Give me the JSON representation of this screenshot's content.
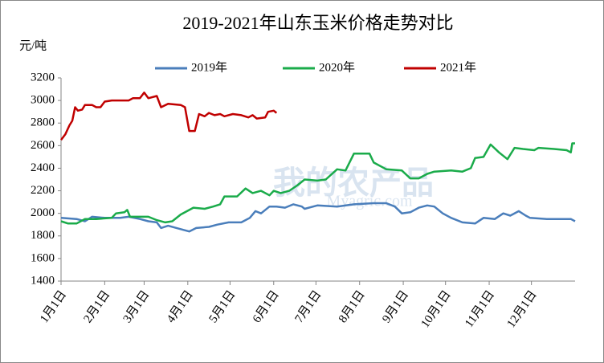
{
  "chart_data": {
    "type": "line",
    "title": "2019-2021年山东玉米价格走势对比",
    "y_label": "元/吨",
    "watermark": [
      "我的农产品",
      "Myagric.com"
    ],
    "xlim": [
      0,
      365
    ],
    "xticks": [
      {
        "value": 0,
        "label": "1月1日"
      },
      {
        "value": 31,
        "label": "2月1日"
      },
      {
        "value": 59,
        "label": "3月1日"
      },
      {
        "value": 90,
        "label": "4月1日"
      },
      {
        "value": 120,
        "label": "5月1日"
      },
      {
        "value": 151,
        "label": "6月1日"
      },
      {
        "value": 181,
        "label": "7月1日"
      },
      {
        "value": 212,
        "label": "8月1日"
      },
      {
        "value": 243,
        "label": "9月1日"
      },
      {
        "value": 273,
        "label": "10月1日"
      },
      {
        "value": 304,
        "label": "11月1日"
      },
      {
        "value": 334,
        "label": "12月1日"
      }
    ],
    "ylim": [
      1400,
      3200
    ],
    "yticks": [
      1400,
      1600,
      1800,
      2000,
      2200,
      2400,
      2600,
      2800,
      3000,
      3200
    ],
    "grid": false,
    "legend": "top",
    "series": [
      {
        "name": "2019年",
        "color": "#4a7ebb",
        "x": [
          0,
          11,
          17,
          22,
          31,
          42,
          48,
          56,
          62,
          68,
          71,
          76,
          82,
          91,
          96,
          105,
          111,
          119,
          128,
          134,
          138,
          142,
          148,
          153,
          159,
          165,
          171,
          173,
          182,
          196,
          208,
          222,
          231,
          237,
          242,
          248,
          254,
          260,
          265,
          271,
          277,
          285,
          294,
          300,
          308,
          314,
          319,
          325,
          330,
          333,
          345,
          356,
          362,
          365
        ],
        "values": [
          1960,
          1950,
          1930,
          1970,
          1960,
          1960,
          1970,
          1950,
          1930,
          1920,
          1870,
          1890,
          1870,
          1840,
          1870,
          1880,
          1900,
          1920,
          1920,
          1960,
          2020,
          2000,
          2060,
          2060,
          2050,
          2080,
          2060,
          2040,
          2070,
          2060,
          2080,
          2090,
          2090,
          2060,
          2000,
          2010,
          2050,
          2070,
          2060,
          2000,
          1960,
          1920,
          1910,
          1960,
          1950,
          2000,
          1980,
          2020,
          1980,
          1960,
          1950,
          1950,
          1950,
          1930
        ]
      },
      {
        "name": "2020年",
        "color": "#1aab4a",
        "x": [
          0,
          5,
          11,
          17,
          25,
          36,
          39,
          45,
          47,
          49,
          56,
          62,
          68,
          74,
          79,
          85,
          94,
          102,
          108,
          113,
          116,
          125,
          131,
          136,
          142,
          148,
          151,
          156,
          162,
          168,
          173,
          182,
          188,
          196,
          202,
          208,
          219,
          222,
          231,
          242,
          248,
          254,
          260,
          265,
          277,
          285,
          291,
          294,
          300,
          305,
          311,
          317,
          322,
          328,
          336,
          339,
          350,
          359,
          362,
          363,
          365
        ],
        "values": [
          1930,
          1910,
          1910,
          1950,
          1950,
          1960,
          2000,
          2010,
          2030,
          1970,
          1970,
          1970,
          1940,
          1920,
          1930,
          1990,
          2050,
          2040,
          2060,
          2080,
          2150,
          2150,
          2220,
          2180,
          2200,
          2160,
          2200,
          2180,
          2200,
          2250,
          2300,
          2290,
          2300,
          2390,
          2380,
          2530,
          2530,
          2450,
          2390,
          2380,
          2310,
          2310,
          2350,
          2370,
          2380,
          2370,
          2400,
          2490,
          2500,
          2610,
          2540,
          2480,
          2580,
          2570,
          2560,
          2580,
          2570,
          2560,
          2540,
          2620,
          2620
        ]
      },
      {
        "name": "2021年",
        "color": "#c00000",
        "x": [
          0,
          3,
          6,
          8,
          10,
          12,
          15,
          17,
          22,
          25,
          28,
          31,
          36,
          48,
          51,
          56,
          59,
          62,
          68,
          71,
          76,
          85,
          88,
          91,
          95,
          98,
          102,
          105,
          109,
          113,
          116,
          122,
          128,
          133,
          136,
          139,
          145,
          147,
          151,
          153
        ],
        "values": [
          2650,
          2700,
          2780,
          2820,
          2940,
          2910,
          2920,
          2960,
          2960,
          2940,
          2940,
          2990,
          3000,
          3000,
          3020,
          3020,
          3070,
          3020,
          3040,
          2940,
          2970,
          2960,
          2940,
          2730,
          2730,
          2880,
          2860,
          2890,
          2870,
          2880,
          2860,
          2880,
          2870,
          2850,
          2870,
          2840,
          2850,
          2900,
          2910,
          2890
        ]
      }
    ]
  }
}
